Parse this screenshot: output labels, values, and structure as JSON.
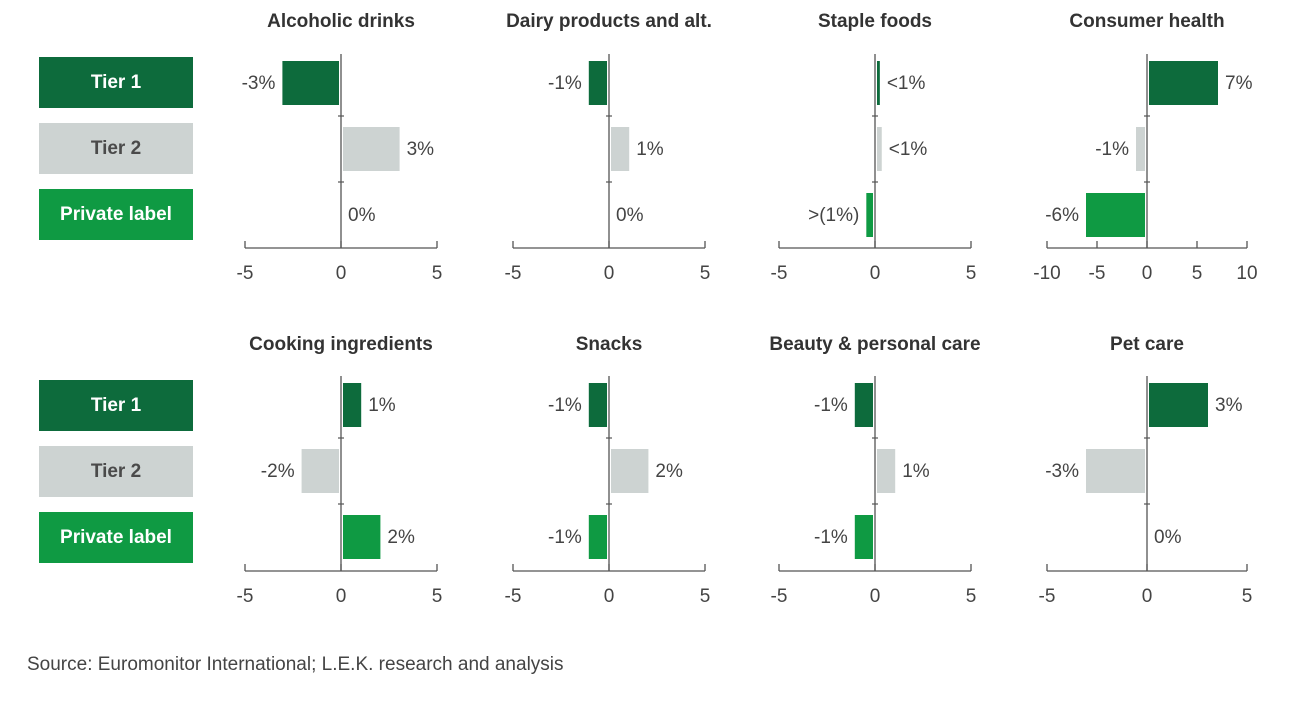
{
  "legend": {
    "rows": [
      {
        "label": "Tier 1",
        "color": "#0d6b3c",
        "text_color": "#ffffff"
      },
      {
        "label": "Tier 2",
        "color": "#cdd3d2",
        "text_color": "#4a4a4a"
      },
      {
        "label": "Private label",
        "color": "#0f9a43",
        "text_color": "#ffffff"
      }
    ]
  },
  "colors": {
    "tier1": "#0d6b3c",
    "tier2": "#cdd3d2",
    "private": "#0f9a43",
    "axis": "#555555"
  },
  "chart_data": [
    {
      "type": "bar",
      "orientation": "horizontal",
      "title": "Alcoholic drinks",
      "categories": [
        "Tier 1",
        "Tier 2",
        "Private label"
      ],
      "values": [
        -3,
        3,
        0
      ],
      "labels": [
        "-3%",
        "3%",
        "0%"
      ],
      "xlim": [
        -5,
        5
      ],
      "ticks": [
        -5,
        0,
        5
      ],
      "tick_labels": [
        "-5",
        "0",
        "5"
      ]
    },
    {
      "type": "bar",
      "orientation": "horizontal",
      "title": "Dairy products and alt.",
      "categories": [
        "Tier 1",
        "Tier 2",
        "Private label"
      ],
      "values": [
        -1,
        1,
        0
      ],
      "labels": [
        "-1%",
        "1%",
        "0%"
      ],
      "xlim": [
        -5,
        5
      ],
      "ticks": [
        -5,
        0,
        5
      ],
      "tick_labels": [
        "-5",
        "0",
        "5"
      ]
    },
    {
      "type": "bar",
      "orientation": "horizontal",
      "title": "Staple foods",
      "categories": [
        "Tier 1",
        "Tier 2",
        "Private label"
      ],
      "values": [
        0.2,
        0.3,
        -0.4
      ],
      "labels": [
        "<1%",
        "<1%",
        ">(1%)"
      ],
      "xlim": [
        -5,
        5
      ],
      "ticks": [
        -5,
        0,
        5
      ],
      "tick_labels": [
        "-5",
        "0",
        "5"
      ]
    },
    {
      "type": "bar",
      "orientation": "horizontal",
      "title": "Consumer health",
      "categories": [
        "Tier 1",
        "Tier 2",
        "Private label"
      ],
      "values": [
        7,
        -1,
        -6
      ],
      "labels": [
        "7%",
        "-1%",
        "-6%"
      ],
      "xlim": [
        -10,
        10
      ],
      "ticks": [
        -10,
        -5,
        0,
        5,
        10
      ],
      "tick_labels": [
        "-10",
        "-5",
        "0",
        "5",
        "10"
      ]
    },
    {
      "type": "bar",
      "orientation": "horizontal",
      "title": "Cooking ingredients",
      "categories": [
        "Tier 1",
        "Tier 2",
        "Private label"
      ],
      "values": [
        1,
        -2,
        2
      ],
      "labels": [
        "1%",
        "-2%",
        "2%"
      ],
      "xlim": [
        -5,
        5
      ],
      "ticks": [
        -5,
        0,
        5
      ],
      "tick_labels": [
        "-5",
        "0",
        "5"
      ]
    },
    {
      "type": "bar",
      "orientation": "horizontal",
      "title": "Snacks",
      "categories": [
        "Tier 1",
        "Tier 2",
        "Private label"
      ],
      "values": [
        -1,
        2,
        -1
      ],
      "labels": [
        "-1%",
        "2%",
        "-1%"
      ],
      "xlim": [
        -5,
        5
      ],
      "ticks": [
        -5,
        0,
        5
      ],
      "tick_labels": [
        "-5",
        "0",
        "5"
      ]
    },
    {
      "type": "bar",
      "orientation": "horizontal",
      "title": "Beauty & personal care",
      "categories": [
        "Tier 1",
        "Tier 2",
        "Private label"
      ],
      "values": [
        -1,
        1,
        -1
      ],
      "labels": [
        "-1%",
        "1%",
        "-1%"
      ],
      "xlim": [
        -5,
        5
      ],
      "ticks": [
        -5,
        0,
        5
      ],
      "tick_labels": [
        "-5",
        "0",
        "5"
      ]
    },
    {
      "type": "bar",
      "orientation": "horizontal",
      "title": "Pet care",
      "categories": [
        "Tier 1",
        "Tier 2",
        "Private label"
      ],
      "values": [
        3,
        -3,
        0
      ],
      "labels": [
        "3%",
        "-3%",
        "0%"
      ],
      "xlim": [
        -5,
        5
      ],
      "ticks": [
        -5,
        0,
        5
      ],
      "tick_labels": [
        "-5",
        "0",
        "5"
      ]
    }
  ],
  "source": "Source: Euromonitor International; L.E.K. research and analysis"
}
